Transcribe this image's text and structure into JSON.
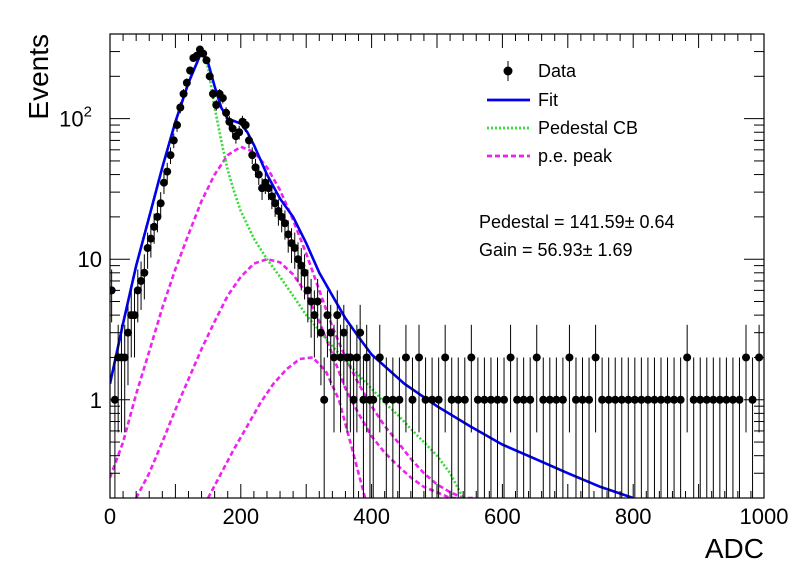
{
  "chart_data": {
    "type": "scatter",
    "xlabel": "ADC",
    "ylabel": "Events",
    "xlim": [
      0,
      1000
    ],
    "ylim": [
      0.2,
      400
    ],
    "yscale": "log",
    "grid": false,
    "legend_position": "top-right",
    "x_ticks": [
      {
        "value": 0,
        "label": "0"
      },
      {
        "value": 200,
        "label": "200"
      },
      {
        "value": 400,
        "label": "400"
      },
      {
        "value": 600,
        "label": "600"
      },
      {
        "value": 800,
        "label": "800"
      },
      {
        "value": 1000,
        "label": "1000"
      }
    ],
    "y_ticks": [
      {
        "value": 1,
        "label": "1"
      },
      {
        "value": 10,
        "label": "10"
      },
      {
        "value": 100,
        "label": "10",
        "sup": "2"
      }
    ],
    "legend": [
      {
        "label": "Data",
        "style": "marker",
        "color": "#000000"
      },
      {
        "label": "Fit",
        "style": "solid",
        "color": "#0000ee"
      },
      {
        "label": "Pedestal CB",
        "style": "dotted",
        "color": "#33dd33"
      },
      {
        "label": "p.e. peak",
        "style": "dashed",
        "color": "#ee22ee"
      }
    ],
    "annotations": [
      "Pedestal = 141.59± 0.64",
      "Gain = 56.93± 1.69"
    ],
    "colors": {
      "data": "#000000",
      "fit": "#0000ee",
      "pedestal": "#33dd33",
      "pe": "#ee22ee"
    },
    "series": [
      {
        "name": "Data",
        "kind": "points",
        "x": [
          0,
          5,
          10,
          15,
          20,
          25,
          30,
          35,
          40,
          45,
          50,
          55,
          60,
          65,
          70,
          75,
          80,
          85,
          90,
          95,
          100,
          105,
          110,
          115,
          120,
          125,
          130,
          135,
          140,
          145,
          150,
          155,
          160,
          165,
          170,
          175,
          180,
          185,
          190,
          195,
          200,
          205,
          210,
          215,
          220,
          225,
          230,
          235,
          240,
          245,
          250,
          255,
          260,
          265,
          270,
          275,
          280,
          285,
          290,
          295,
          300,
          305,
          310,
          315,
          320,
          325,
          330,
          335,
          340,
          345,
          350,
          355,
          360,
          365,
          370,
          375,
          380,
          385,
          390,
          395,
          400,
          410,
          420,
          430,
          440,
          450,
          460,
          470,
          480,
          490,
          500,
          510,
          520,
          530,
          540,
          550,
          560,
          570,
          580,
          590,
          600,
          610,
          620,
          630,
          640,
          650,
          660,
          670,
          680,
          690,
          700,
          710,
          720,
          730,
          740,
          750,
          760,
          770,
          780,
          790,
          800,
          810,
          820,
          830,
          840,
          850,
          860,
          870,
          880,
          890,
          900,
          910,
          920,
          930,
          940,
          950,
          960,
          970,
          980,
          990
        ],
        "y": [
          6,
          1,
          2,
          2,
          2,
          3,
          4,
          4,
          6,
          7,
          8,
          12,
          14,
          17,
          20,
          25,
          35,
          42,
          55,
          70,
          90,
          120,
          150,
          180,
          220,
          270,
          280,
          310,
          290,
          260,
          200,
          150,
          125,
          150,
          140,
          110,
          95,
          85,
          75,
          80,
          95,
          90,
          70,
          55,
          45,
          40,
          32,
          35,
          32,
          28,
          25,
          22,
          20,
          18,
          15,
          13,
          12,
          10,
          9,
          8,
          6,
          5,
          4,
          5,
          3,
          1,
          4,
          3,
          2,
          4,
          2,
          3,
          2,
          2,
          1,
          2,
          3,
          1,
          2,
          1,
          1,
          2,
          1,
          1,
          1,
          2,
          1,
          2,
          1,
          1,
          1,
          2,
          1,
          1,
          1,
          2,
          1,
          1,
          1,
          1,
          1,
          2,
          1,
          1,
          1,
          2,
          1,
          1,
          1,
          1,
          2,
          1,
          1,
          1,
          2,
          1,
          1,
          1,
          1,
          1,
          1,
          1,
          1,
          1,
          1,
          1,
          1,
          1,
          2,
          1,
          1,
          1,
          1,
          1,
          1,
          1,
          1,
          2,
          1,
          2
        ]
      },
      {
        "name": "Fit",
        "kind": "line",
        "x": [
          0,
          20,
          40,
          60,
          80,
          100,
          120,
          140,
          150,
          160,
          170,
          180,
          190,
          200,
          210,
          220,
          240,
          260,
          280,
          300,
          320,
          340,
          360,
          380,
          400,
          450,
          500,
          550,
          600,
          650,
          700,
          750,
          800
        ],
        "y": [
          1.3,
          3.5,
          9,
          20,
          45,
          95,
          180,
          300,
          250,
          170,
          120,
          100,
          96,
          92,
          80,
          65,
          40,
          27,
          20,
          13,
          8,
          5.5,
          3.8,
          2.8,
          2.1,
          1.3,
          0.9,
          0.65,
          0.48,
          0.38,
          0.3,
          0.24,
          0.2
        ]
      },
      {
        "name": "Pedestal CB",
        "kind": "line",
        "x": [
          0,
          20,
          40,
          60,
          80,
          100,
          120,
          140,
          150,
          160,
          170,
          180,
          190,
          200,
          220,
          240,
          260,
          280,
          300,
          320,
          340,
          360,
          380,
          400,
          420,
          440,
          460,
          480,
          500,
          520,
          540
        ],
        "y": [
          1.3,
          3.5,
          9,
          20,
          45,
          95,
          180,
          300,
          230,
          120,
          70,
          43,
          30,
          22,
          14,
          10,
          7.5,
          5.5,
          4,
          3.1,
          2.4,
          1.9,
          1.5,
          1.2,
          0.95,
          0.78,
          0.62,
          0.5,
          0.4,
          0.3,
          0.2
        ]
      },
      {
        "name": "p.e. peak",
        "kind": "line",
        "x": [
          0,
          20,
          40,
          60,
          80,
          100,
          120,
          140,
          160,
          180,
          200,
          220,
          240,
          260,
          280,
          300,
          320,
          340,
          360,
          380,
          400,
          420,
          440,
          460,
          480,
          500,
          520,
          540,
          560
        ],
        "y": [
          0.28,
          0.5,
          1.1,
          2.2,
          4.5,
          8.5,
          15,
          26,
          40,
          55,
          63,
          58,
          45,
          31,
          19,
          11,
          6,
          3.3,
          2,
          1.3,
          0.9,
          0.65,
          0.5,
          0.38,
          0.3,
          0.25,
          0.22,
          0.2,
          0.19
        ]
      },
      {
        "name": "",
        "kind": "line",
        "x": [
          40,
          60,
          80,
          100,
          120,
          140,
          160,
          180,
          200,
          220,
          240,
          260,
          280,
          300,
          320,
          340,
          360,
          380,
          400,
          420,
          440,
          460,
          480,
          500,
          520,
          540
        ],
        "y": [
          0.2,
          0.3,
          0.5,
          0.85,
          1.4,
          2.3,
          3.6,
          5.5,
          7.5,
          9.3,
          10,
          9.5,
          7.8,
          5.7,
          3.6,
          2.1,
          1.2,
          0.8,
          0.55,
          0.42,
          0.34,
          0.28,
          0.24,
          0.22,
          0.2,
          0.19
        ]
      },
      {
        "name": "",
        "kind": "line",
        "x": [
          150,
          170,
          190,
          210,
          230,
          250,
          270,
          290,
          310,
          330,
          350,
          370,
          390
        ],
        "y": [
          0.2,
          0.3,
          0.45,
          0.65,
          0.95,
          1.3,
          1.65,
          1.95,
          2,
          1.6,
          1.0,
          0.45,
          0.2
        ]
      }
    ]
  }
}
